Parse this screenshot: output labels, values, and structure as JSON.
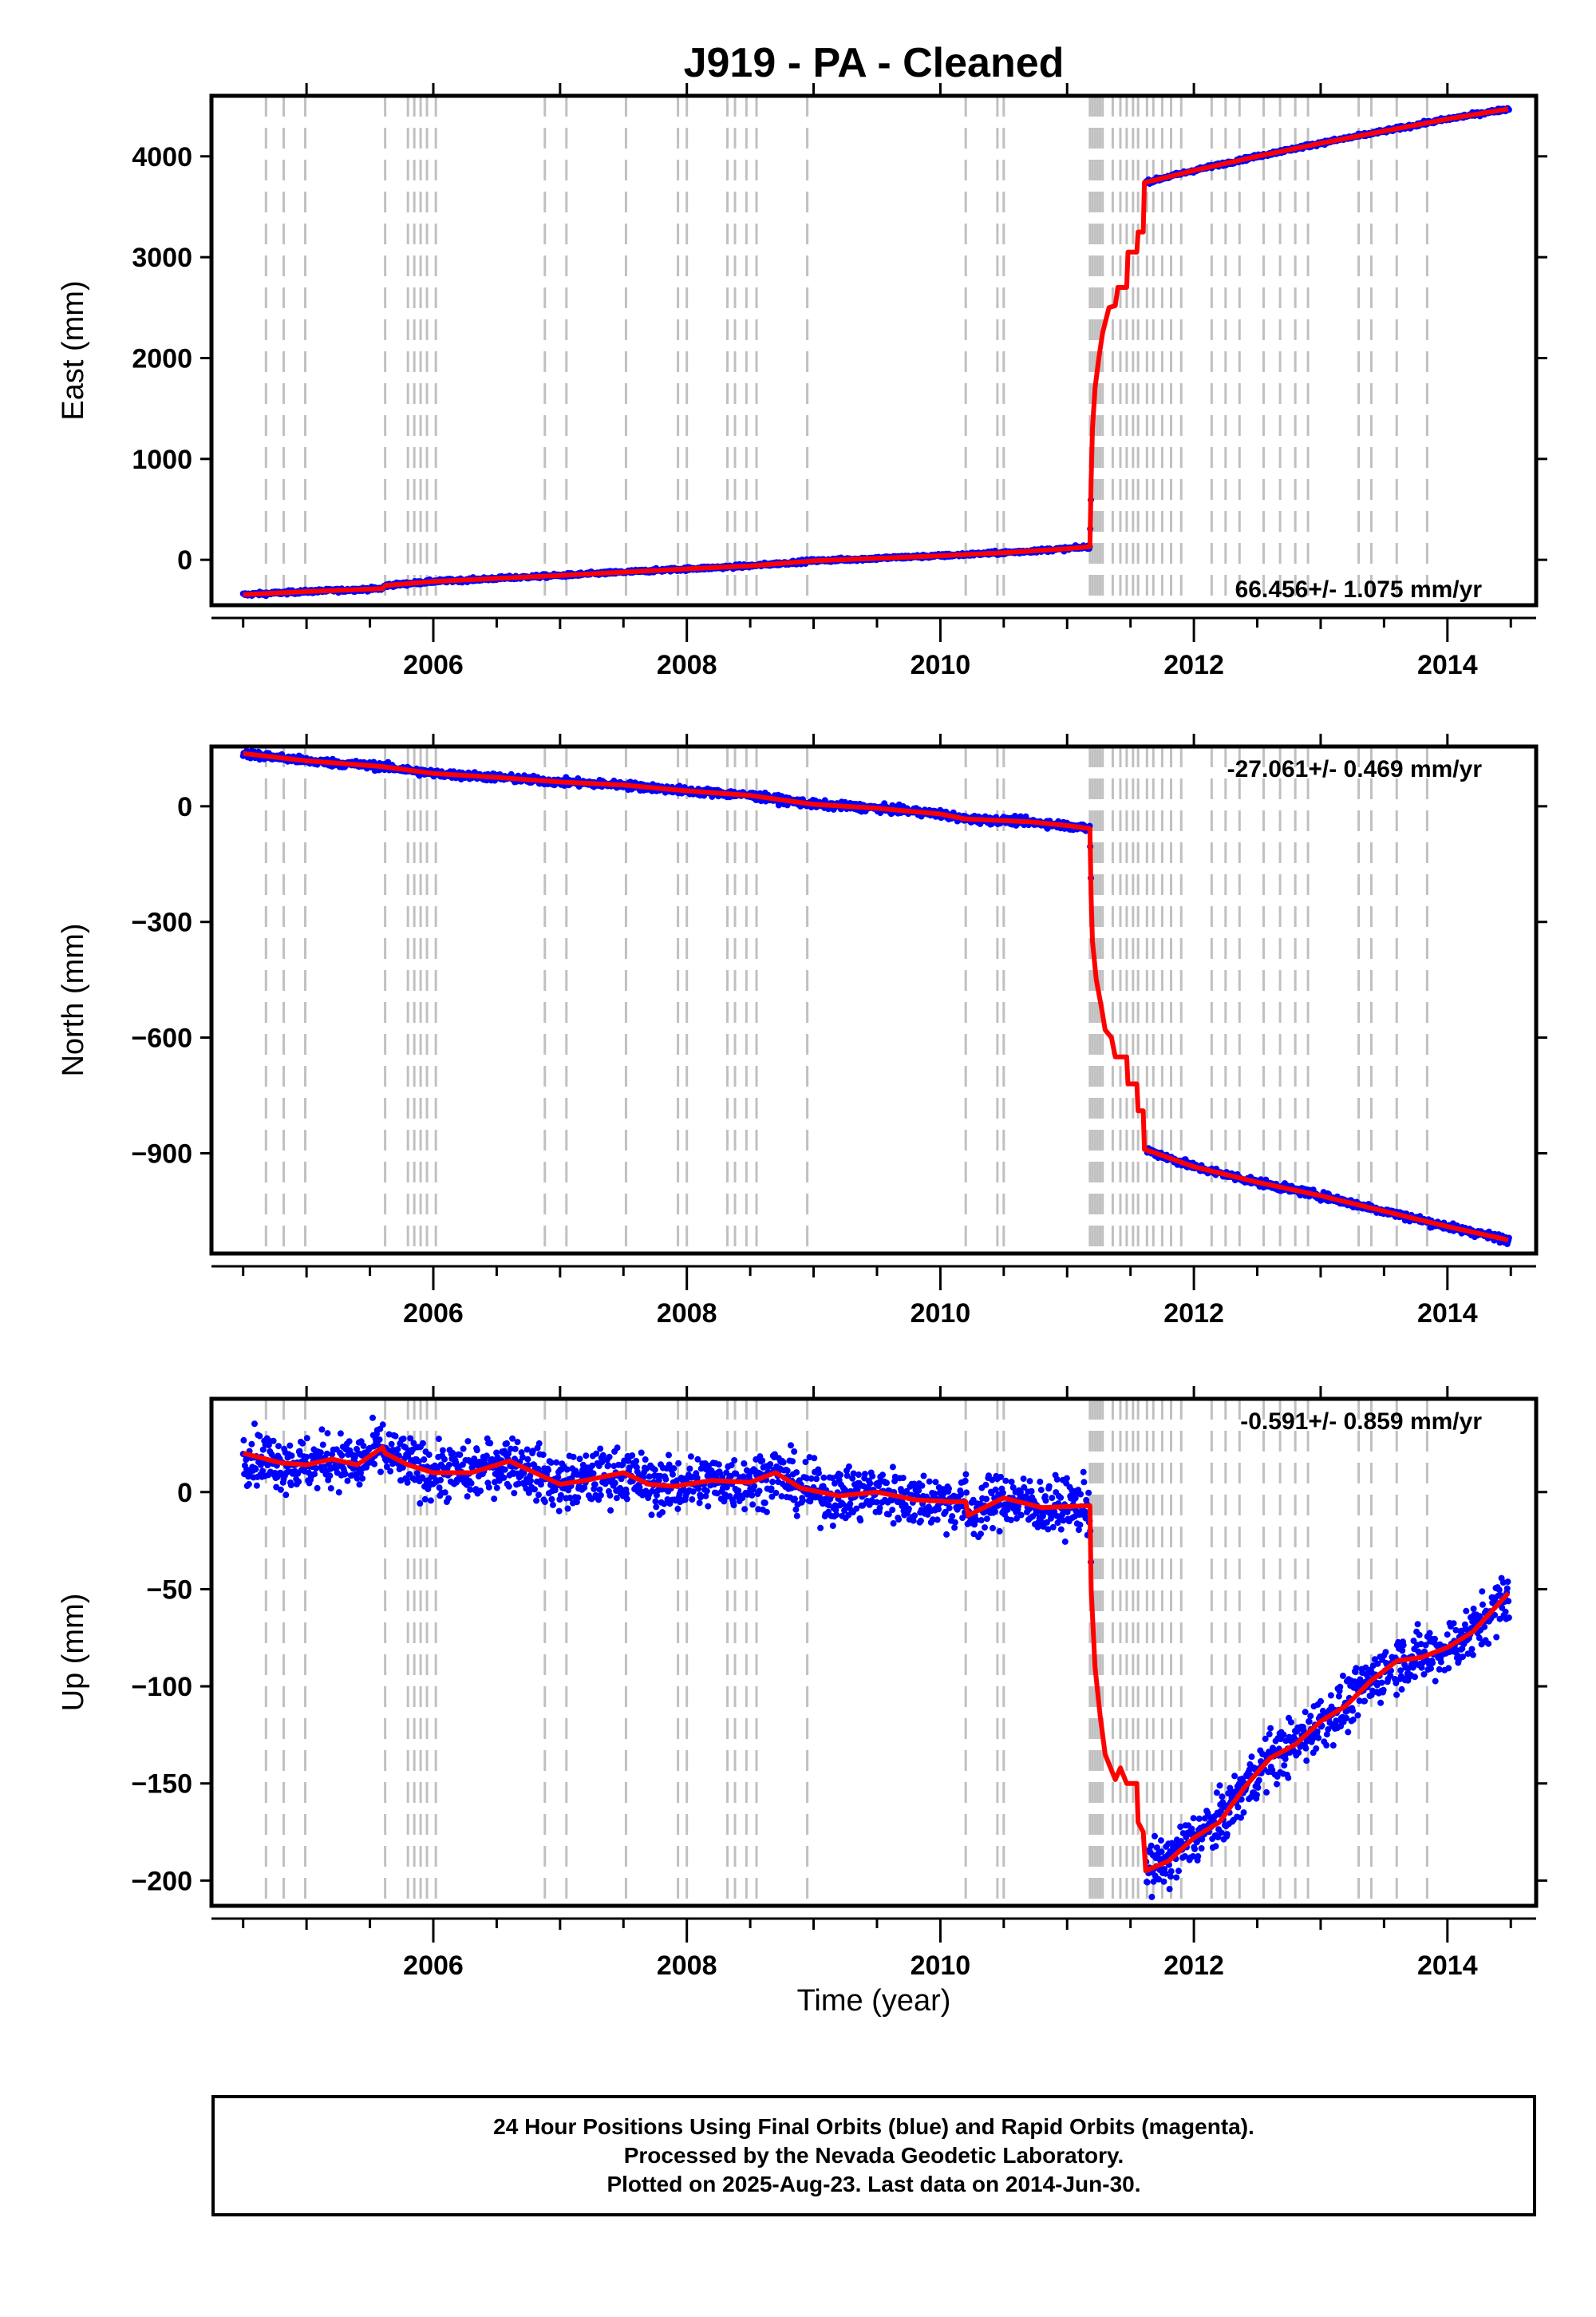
{
  "title": "J919  - PA - Cleaned",
  "xlabel": "Time (year)",
  "footer": {
    "line1": "24 Hour Positions Using Final Orbits (blue) and Rapid Orbits (magenta).",
    "line2": "Processed by the Nevada Geodetic Laboratory.",
    "line3": "Plotted on 2025-Aug-23. Last data on 2014-Jun-30."
  },
  "colors": {
    "final_orbits": "#0000ff",
    "model": "#ff0000",
    "event_lines": "#c0c0c0"
  },
  "chart_data": [
    {
      "type": "scatter",
      "panel": "east",
      "ylabel": "East (mm)",
      "rate_label": "66.456+/- 1.075 mm/yr",
      "rate_position": "bottom-right",
      "xlim": [
        2004.25,
        2014.7
      ],
      "ylim": [
        -450,
        4600
      ],
      "xticks": [
        2006,
        2008,
        2010,
        2012,
        2014
      ],
      "yticks": [
        0,
        1000,
        2000,
        3000,
        4000
      ],
      "series": [
        {
          "style": "model-line",
          "points": [
            [
              2004.5,
              -345
            ],
            [
              2005.0,
              -315
            ],
            [
              2005.6,
              -285
            ],
            [
              2005.62,
              -255
            ],
            [
              2006.0,
              -215
            ],
            [
              2007.0,
              -155
            ],
            [
              2008.0,
              -90
            ],
            [
              2008.5,
              -60
            ],
            [
              2009.0,
              -10
            ],
            [
              2010.0,
              40
            ],
            [
              2010.5,
              70
            ],
            [
              2011.0,
              110
            ],
            [
              2011.18,
              130
            ],
            [
              2011.19,
              800
            ],
            [
              2011.2,
              1300
            ],
            [
              2011.22,
              1700
            ],
            [
              2011.25,
              2000
            ],
            [
              2011.28,
              2250
            ],
            [
              2011.3,
              2350
            ],
            [
              2011.33,
              2500
            ],
            [
              2011.38,
              2520
            ],
            [
              2011.4,
              2700
            ],
            [
              2011.47,
              2700
            ],
            [
              2011.48,
              3050
            ],
            [
              2011.55,
              3050
            ],
            [
              2011.56,
              3250
            ],
            [
              2011.6,
              3250
            ],
            [
              2011.61,
              3740
            ],
            [
              2011.68,
              3760
            ],
            [
              2012.0,
              3860
            ],
            [
              2012.5,
              4000
            ],
            [
              2013.0,
              4130
            ],
            [
              2013.5,
              4250
            ],
            [
              2014.0,
              4370
            ],
            [
              2014.48,
              4470
            ]
          ]
        }
      ]
    },
    {
      "type": "scatter",
      "panel": "north",
      "ylabel": "North (mm)",
      "rate_label": "-27.061+/- 0.469 mm/yr",
      "rate_position": "top-right",
      "xlim": [
        2004.25,
        2014.7
      ],
      "ylim": [
        -1160,
        155
      ],
      "xticks": [
        2006,
        2008,
        2010,
        2012,
        2014
      ],
      "yticks": [
        0,
        -300,
        -600,
        -900
      ],
      "series": [
        {
          "style": "model-line",
          "points": [
            [
              2004.5,
              137
            ],
            [
              2005.0,
              118
            ],
            [
              2005.6,
              103
            ],
            [
              2006.0,
              85
            ],
            [
              2006.5,
              75
            ],
            [
              2007.0,
              63
            ],
            [
              2007.5,
              55
            ],
            [
              2008.0,
              40
            ],
            [
              2008.5,
              28
            ],
            [
              2009.0,
              5
            ],
            [
              2009.5,
              -5
            ],
            [
              2010.0,
              -20
            ],
            [
              2010.2,
              -33
            ],
            [
              2010.7,
              -40
            ],
            [
              2011.0,
              -50
            ],
            [
              2011.18,
              -58
            ],
            [
              2011.19,
              -240
            ],
            [
              2011.2,
              -350
            ],
            [
              2011.23,
              -450
            ],
            [
              2011.27,
              -520
            ],
            [
              2011.3,
              -580
            ],
            [
              2011.35,
              -600
            ],
            [
              2011.38,
              -650
            ],
            [
              2011.47,
              -650
            ],
            [
              2011.48,
              -720
            ],
            [
              2011.55,
              -720
            ],
            [
              2011.56,
              -790
            ],
            [
              2011.6,
              -790
            ],
            [
              2011.61,
              -890
            ],
            [
              2011.7,
              -900
            ],
            [
              2012.0,
              -935
            ],
            [
              2012.5,
              -975
            ],
            [
              2013.0,
              -1010
            ],
            [
              2013.5,
              -1050
            ],
            [
              2014.0,
              -1090
            ],
            [
              2014.48,
              -1125
            ]
          ]
        }
      ]
    },
    {
      "type": "scatter",
      "panel": "up",
      "ylabel": "Up (mm)",
      "rate_label": "-0.591+/- 0.859 mm/yr",
      "rate_position": "top-right",
      "xlim": [
        2004.25,
        2014.7
      ],
      "ylim": [
        -213,
        48
      ],
      "xticks": [
        2006,
        2008,
        2010,
        2012,
        2014
      ],
      "yticks": [
        0,
        -50,
        -100,
        -150,
        -200
      ],
      "series": [
        {
          "style": "model-line",
          "points": [
            [
              2004.5,
              20
            ],
            [
              2004.8,
              15
            ],
            [
              2005.0,
              14
            ],
            [
              2005.2,
              17
            ],
            [
              2005.4,
              14
            ],
            [
              2005.6,
              23
            ],
            [
              2005.62,
              20
            ],
            [
              2005.8,
              14
            ],
            [
              2006.0,
              10
            ],
            [
              2006.3,
              10
            ],
            [
              2006.6,
              16
            ],
            [
              2006.9,
              7
            ],
            [
              2007.0,
              4
            ],
            [
              2007.2,
              6
            ],
            [
              2007.5,
              10
            ],
            [
              2007.7,
              4
            ],
            [
              2007.9,
              3
            ],
            [
              2008.2,
              6
            ],
            [
              2008.5,
              5
            ],
            [
              2008.7,
              10
            ],
            [
              2008.9,
              2
            ],
            [
              2009.2,
              -2
            ],
            [
              2009.5,
              0
            ],
            [
              2009.8,
              -4
            ],
            [
              2010.1,
              -5
            ],
            [
              2010.2,
              -5
            ],
            [
              2010.22,
              -12
            ],
            [
              2010.5,
              -3
            ],
            [
              2010.8,
              -8
            ],
            [
              2011.18,
              -7
            ],
            [
              2011.19,
              -50
            ],
            [
              2011.22,
              -90
            ],
            [
              2011.26,
              -115
            ],
            [
              2011.3,
              -135
            ],
            [
              2011.33,
              -140
            ],
            [
              2011.38,
              -148
            ],
            [
              2011.42,
              -142
            ],
            [
              2011.47,
              -150
            ],
            [
              2011.55,
              -150
            ],
            [
              2011.56,
              -170
            ],
            [
              2011.6,
              -175
            ],
            [
              2011.62,
              -195
            ],
            [
              2011.8,
              -190
            ],
            [
              2012.0,
              -178
            ],
            [
              2012.2,
              -170
            ],
            [
              2012.4,
              -152
            ],
            [
              2012.6,
              -137
            ],
            [
              2012.8,
              -130
            ],
            [
              2013.0,
              -118
            ],
            [
              2013.2,
              -110
            ],
            [
              2013.4,
              -97
            ],
            [
              2013.6,
              -87
            ],
            [
              2013.8,
              -85
            ],
            [
              2014.0,
              -80
            ],
            [
              2014.2,
              -72
            ],
            [
              2014.48,
              -52
            ]
          ]
        }
      ]
    }
  ],
  "event_lines": [
    2004.68,
    2004.82,
    2004.99,
    2005.62,
    2005.8,
    2005.85,
    2005.9,
    2005.95,
    2006.02,
    2006.88,
    2007.05,
    2007.52,
    2007.93,
    2008.0,
    2008.32,
    2008.38,
    2008.47,
    2008.55,
    2008.95,
    2010.2,
    2010.45,
    2010.5,
    2011.18,
    2011.2,
    2011.22,
    2011.24,
    2011.26,
    2011.28,
    2011.36,
    2011.42,
    2011.47,
    2011.52,
    2011.56,
    2011.63,
    2011.68,
    2011.75,
    2011.82,
    2011.9,
    2012.14,
    2012.25,
    2012.36,
    2012.55,
    2012.68,
    2012.8,
    2012.9,
    2013.3,
    2013.4,
    2013.6,
    2013.84
  ]
}
